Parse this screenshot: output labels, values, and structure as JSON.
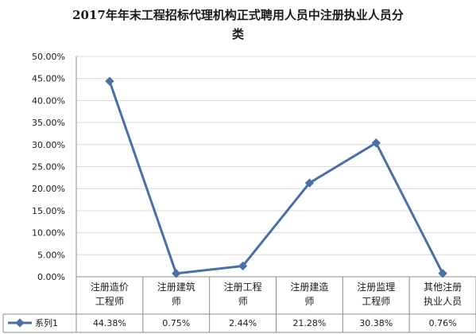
{
  "chart_data": {
    "type": "line",
    "title_lines": [
      "2017年年末工程招标代理机构正式聘用人员中注册执业人员分",
      "类"
    ],
    "categories": [
      [
        "注册造价",
        "工程师"
      ],
      [
        "注册建筑",
        "师"
      ],
      [
        "注册工程",
        "师"
      ],
      [
        "注册建造",
        "师"
      ],
      [
        "注册监理",
        "工程师"
      ],
      [
        "其他注册",
        "执业人员"
      ]
    ],
    "series": [
      {
        "name": "系列1",
        "values": [
          44.38,
          0.75,
          2.44,
          21.28,
          30.38,
          0.76
        ],
        "value_labels": [
          "44.38%",
          "0.75%",
          "2.44%",
          "21.28%",
          "30.38%",
          "0.76%"
        ]
      }
    ],
    "y_ticks": [
      "0.00%",
      "5.00%",
      "10.00%",
      "15.00%",
      "20.00%",
      "25.00%",
      "30.00%",
      "35.00%",
      "40.00%",
      "45.00%",
      "50.00%"
    ],
    "ylim": [
      0,
      50
    ],
    "grid": true,
    "legend": "data-table-left",
    "colors": {
      "line": "#4a6fa5",
      "marker": "#4a6fa5",
      "grid": "#d9d9d9",
      "axis": "#8c8c8c"
    }
  }
}
